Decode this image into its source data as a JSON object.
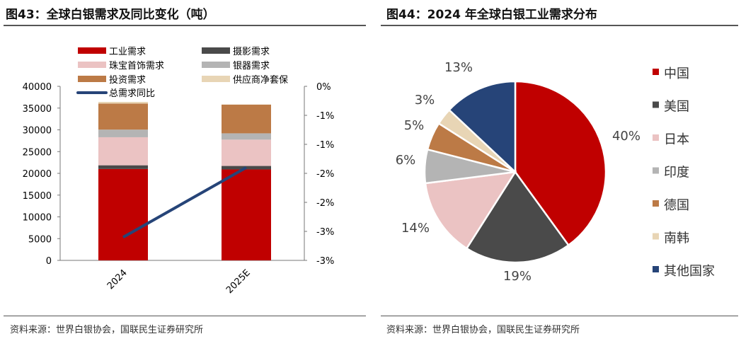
{
  "left": {
    "title": "图43：全球白银需求及同比变化（吨）",
    "source": "资料来源：世界白银协会，国联民生证券研究所"
  },
  "right": {
    "title": "图44：2024 年全球白银工业需求分布",
    "source": "资料来源：世界白银协会，国联民生证券研究所"
  },
  "chart_data": [
    {
      "type": "bar",
      "stacked": true,
      "categories": [
        "2024",
        "2025E"
      ],
      "series": [
        {
          "name": "工业需求",
          "values": [
            21000,
            20900
          ],
          "color": "#C00000"
        },
        {
          "name": "摄影需求",
          "values": [
            850,
            800
          ],
          "color": "#4A4A4A"
        },
        {
          "name": "珠宝首饰需求",
          "values": [
            6450,
            6050
          ],
          "color": "#EBC3C3"
        },
        {
          "name": "银器需求",
          "values": [
            1750,
            1450
          ],
          "color": "#B4B4B4"
        },
        {
          "name": "投资需求",
          "values": [
            6000,
            6600
          ],
          "color": "#BC7A46"
        },
        {
          "name": "供应商净套保",
          "values": [
            370,
            50
          ],
          "color": "#E8D5B5"
        }
      ],
      "line": {
        "name": "总需求同比",
        "values": [
          -2.6,
          -1.4
        ],
        "color": "#264478",
        "axis": "right"
      },
      "ylim": [
        0,
        40000
      ],
      "yticks": [
        "0",
        "5000",
        "10000",
        "15000",
        "20000",
        "25000",
        "30000",
        "35000",
        "40000"
      ],
      "y2lim": [
        -3,
        0
      ],
      "y2ticks": [
        "0%",
        "-1%",
        "-1%",
        "-2%",
        "-2%",
        "-3%",
        "-3%"
      ],
      "legend": "top"
    },
    {
      "type": "pie",
      "labels": [
        "中国",
        "美国",
        "日本",
        "印度",
        "德国",
        "南韩",
        "其他国家"
      ],
      "values": [
        40,
        19,
        14,
        6,
        5,
        3,
        13
      ],
      "value_labels": [
        "40%",
        "19%",
        "14%",
        "6%",
        "5%",
        "3%",
        "13%"
      ],
      "colors": [
        "#C00000",
        "#4A4A4A",
        "#EBC3C3",
        "#B4B4B4",
        "#BC7A46",
        "#E8D5B5",
        "#264478"
      ],
      "legend": "right"
    }
  ]
}
